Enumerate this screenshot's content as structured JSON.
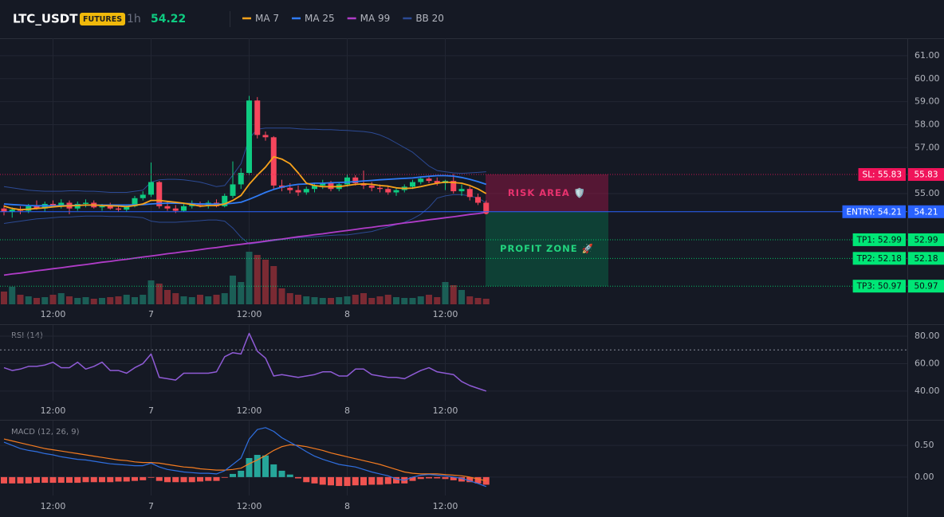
{
  "chart_data": [
    {
      "type": "candlestick",
      "title": "LTC_USDT",
      "badge": "FUTURES",
      "interval": "1h",
      "last_price": 54.22,
      "categories": [
        null,
        null,
        null,
        null,
        null,
        null,
        "12:00",
        null,
        null,
        null,
        null,
        null,
        null,
        null,
        null,
        null,
        null,
        null,
        "7",
        null,
        null,
        null,
        null,
        null,
        null,
        null,
        null,
        null,
        null,
        null,
        "12:00",
        null,
        null,
        null,
        null,
        null,
        null,
        null,
        null,
        null,
        null,
        null,
        "8",
        null,
        null,
        null,
        null,
        null,
        null,
        null,
        null,
        null,
        null,
        null,
        "12:00",
        null,
        null,
        null,
        null,
        null
      ],
      "open": [
        54.35,
        54.2,
        54.3,
        54.25,
        54.45,
        54.35,
        54.55,
        54.45,
        54.6,
        54.35,
        54.55,
        54.6,
        54.4,
        54.45,
        54.35,
        54.3,
        54.45,
        54.8,
        54.95,
        55.5,
        54.45,
        54.35,
        54.25,
        54.45,
        54.55,
        54.5,
        54.6,
        54.45,
        54.9,
        55.4,
        55.9,
        59.05,
        57.55,
        57.45,
        55.35,
        55.25,
        55.15,
        55.05,
        55.2,
        55.35,
        55.45,
        55.2,
        55.4,
        55.7,
        55.45,
        55.35,
        55.25,
        55.2,
        55.05,
        55.15,
        55.3,
        55.5,
        55.65,
        55.55,
        55.45,
        55.55,
        55.1,
        55.2,
        54.85,
        54.6
      ],
      "high": [
        54.5,
        54.4,
        54.45,
        54.55,
        54.7,
        54.65,
        54.7,
        54.75,
        54.7,
        54.65,
        54.75,
        54.7,
        54.55,
        54.6,
        54.5,
        54.5,
        54.9,
        55.1,
        56.35,
        55.55,
        54.65,
        54.5,
        54.55,
        54.7,
        54.65,
        54.7,
        54.75,
        55.0,
        56.4,
        56.1,
        59.25,
        59.2,
        57.7,
        57.5,
        55.6,
        55.45,
        55.35,
        55.3,
        55.45,
        55.6,
        55.55,
        55.5,
        55.85,
        55.8,
        56.0,
        55.5,
        55.4,
        55.35,
        55.25,
        55.4,
        55.6,
        55.75,
        55.75,
        55.7,
        55.6,
        55.85,
        55.4,
        55.3,
        55.0,
        54.7
      ],
      "low": [
        54.05,
        53.95,
        54.1,
        54.15,
        54.3,
        54.2,
        54.4,
        54.35,
        54.1,
        54.25,
        54.4,
        54.35,
        54.25,
        54.3,
        54.2,
        54.2,
        54.4,
        54.7,
        54.85,
        54.35,
        54.25,
        54.15,
        54.2,
        54.35,
        54.4,
        54.35,
        54.4,
        54.4,
        54.8,
        55.2,
        55.8,
        57.4,
        57.3,
        55.2,
        55.1,
        55.0,
        54.9,
        54.95,
        55.05,
        55.2,
        55.1,
        55.1,
        55.3,
        55.35,
        55.2,
        55.1,
        55.05,
        54.95,
        54.9,
        55.05,
        55.2,
        55.4,
        55.45,
        55.35,
        55.15,
        55.0,
        54.9,
        54.7,
        54.5,
        54.15
      ],
      "close": [
        54.2,
        54.3,
        54.25,
        54.45,
        54.35,
        54.55,
        54.45,
        54.6,
        54.35,
        54.55,
        54.6,
        54.4,
        54.45,
        54.35,
        54.3,
        54.45,
        54.8,
        54.95,
        55.5,
        54.45,
        54.35,
        54.25,
        54.45,
        54.55,
        54.5,
        54.6,
        54.45,
        54.9,
        55.4,
        55.9,
        59.05,
        57.55,
        57.45,
        55.35,
        55.25,
        55.15,
        55.05,
        55.2,
        55.35,
        55.45,
        55.2,
        55.4,
        55.7,
        55.45,
        55.35,
        55.25,
        55.2,
        55.05,
        55.15,
        55.3,
        55.5,
        55.65,
        55.55,
        55.45,
        55.55,
        55.1,
        55.2,
        54.85,
        54.6,
        54.22
      ],
      "up_color": "#0ecb81",
      "down_color": "#f6465d",
      "volume": {
        "up_color": "#1b5e56",
        "down_color": "#7a2a33",
        "values": [
          16,
          22,
          12,
          10,
          8,
          9,
          12,
          14,
          10,
          8,
          9,
          7,
          8,
          9,
          10,
          12,
          9,
          12,
          30,
          26,
          18,
          14,
          10,
          9,
          12,
          10,
          12,
          14,
          36,
          28,
          66,
          62,
          56,
          48,
          20,
          14,
          12,
          10,
          9,
          8,
          8,
          9,
          10,
          12,
          14,
          8,
          10,
          12,
          9,
          8,
          8,
          10,
          12,
          9,
          28,
          24,
          18,
          10,
          8,
          7
        ]
      },
      "series": [
        {
          "name": "MA 7",
          "color": "#f7a21b",
          "values": [
            54.45,
            54.35,
            54.3,
            54.32,
            54.35,
            54.38,
            54.42,
            54.45,
            54.47,
            54.48,
            54.5,
            54.5,
            54.48,
            54.47,
            54.46,
            54.43,
            54.48,
            54.55,
            54.7,
            54.7,
            54.66,
            54.62,
            54.58,
            54.52,
            54.45,
            54.48,
            54.48,
            54.55,
            54.7,
            54.92,
            55.4,
            55.8,
            56.15,
            56.6,
            56.5,
            56.3,
            55.9,
            55.45,
            55.35,
            55.3,
            55.3,
            55.3,
            55.35,
            55.4,
            55.42,
            55.4,
            55.35,
            55.32,
            55.25,
            55.22,
            55.24,
            55.3,
            55.38,
            55.45,
            55.5,
            55.48,
            55.45,
            55.35,
            55.2,
            55.0
          ]
        },
        {
          "name": "MA 25",
          "color": "#2f7bf5",
          "values": [
            54.55,
            54.52,
            54.5,
            54.48,
            54.47,
            54.47,
            54.47,
            54.48,
            54.48,
            54.49,
            54.5,
            54.5,
            54.5,
            54.5,
            54.5,
            54.5,
            54.51,
            54.52,
            54.55,
            54.57,
            54.58,
            54.58,
            54.57,
            54.56,
            54.55,
            54.54,
            54.54,
            54.55,
            54.58,
            54.62,
            54.75,
            54.9,
            55.05,
            55.18,
            55.28,
            55.35,
            55.4,
            55.42,
            55.45,
            55.45,
            55.47,
            55.48,
            55.5,
            55.52,
            55.55,
            55.57,
            55.6,
            55.62,
            55.64,
            55.66,
            55.68,
            55.72,
            55.75,
            55.78,
            55.78,
            55.76,
            55.7,
            55.62,
            55.52,
            55.4
          ]
        },
        {
          "name": "MA 99",
          "color": "#b03cc8",
          "values": [
            51.45,
            51.5,
            51.54,
            51.59,
            51.64,
            51.68,
            51.73,
            51.77,
            51.82,
            51.87,
            51.91,
            51.96,
            52.01,
            52.05,
            52.1,
            52.14,
            52.19,
            52.24,
            52.28,
            52.33,
            52.38,
            52.42,
            52.47,
            52.51,
            52.56,
            52.61,
            52.65,
            52.7,
            52.75,
            52.79,
            52.84,
            52.88,
            52.93,
            52.98,
            53.02,
            53.07,
            53.12,
            53.16,
            53.21,
            53.25,
            53.3,
            53.35,
            53.39,
            53.44,
            53.49,
            53.53,
            53.58,
            53.62,
            53.67,
            53.72,
            53.76,
            53.81,
            53.86,
            53.9,
            53.95,
            53.99,
            54.04,
            54.09,
            54.13,
            54.18
          ]
        },
        {
          "name": "BB 20",
          "color": "#2c4a94",
          "upper": [
            55.3,
            55.25,
            55.2,
            55.15,
            55.12,
            55.1,
            55.1,
            55.1,
            55.12,
            55.12,
            55.1,
            55.1,
            55.08,
            55.05,
            55.05,
            55.05,
            55.1,
            55.15,
            55.5,
            55.6,
            55.62,
            55.62,
            55.6,
            55.55,
            55.5,
            55.4,
            55.3,
            55.35,
            55.8,
            56.3,
            57.4,
            57.8,
            57.85,
            57.85,
            57.85,
            57.85,
            57.82,
            57.8,
            57.8,
            57.78,
            57.78,
            57.76,
            57.75,
            57.72,
            57.7,
            57.65,
            57.55,
            57.4,
            57.2,
            57.0,
            56.8,
            56.5,
            56.2,
            56.0,
            55.95,
            55.9,
            55.88,
            55.9,
            55.92,
            55.95
          ],
          "lower": [
            53.7,
            53.75,
            53.8,
            53.85,
            53.9,
            53.92,
            53.95,
            53.98,
            53.98,
            54.0,
            54.02,
            54.02,
            54.02,
            54.0,
            54.0,
            54.0,
            53.98,
            53.95,
            53.8,
            53.75,
            53.75,
            53.75,
            53.78,
            53.8,
            53.82,
            53.85,
            53.85,
            53.8,
            53.5,
            53.1,
            52.8,
            52.85,
            52.9,
            52.95,
            53.0,
            53.05,
            53.08,
            53.1,
            53.12,
            53.15,
            53.18,
            53.2,
            53.2,
            53.25,
            53.3,
            53.35,
            53.45,
            53.55,
            53.65,
            53.75,
            53.9,
            54.1,
            54.4,
            54.8,
            54.9,
            54.95,
            54.95,
            54.9,
            54.8,
            54.6
          ]
        }
      ],
      "ylim": [
        50.18,
        61.76
      ],
      "yticks": [
        {
          "value": 61,
          "label": "61.00"
        },
        {
          "value": 60,
          "label": "60.00"
        },
        {
          "value": 59,
          "label": "59.00"
        },
        {
          "value": 58,
          "label": "58.00"
        },
        {
          "value": 57,
          "label": "57.00"
        },
        {
          "value": 55,
          "label": "55.00"
        }
      ],
      "levels": [
        {
          "tag": "SL: 55.83",
          "value": 55.83,
          "color": "#f0145a",
          "text_color": "#ffffff"
        },
        {
          "tag": "ENTRY: 54.21",
          "value": 54.21,
          "color": "#2962ff",
          "text_color": "#ffffff"
        },
        {
          "tag": "TP1: 52.99",
          "value": 52.99,
          "color": "#00e676",
          "text_color": "#0b0e14"
        },
        {
          "tag": "TP2: 52.18",
          "value": 52.18,
          "color": "#00e676",
          "text_color": "#0b0e14"
        },
        {
          "tag": "TP3: 50.97",
          "value": 50.97,
          "color": "#00e676",
          "text_color": "#0b0e14"
        }
      ],
      "risk_label": "RISK AREA 🛡️",
      "profit_label": "PROFIT ZONE 🚀"
    },
    {
      "type": "line",
      "title": "RSI (14)",
      "color": "#8f5bd6",
      "categories": [
        null,
        null,
        null,
        null,
        null,
        null,
        "12:00",
        null,
        null,
        null,
        null,
        null,
        null,
        null,
        null,
        null,
        null,
        null,
        "7",
        null,
        null,
        null,
        null,
        null,
        null,
        null,
        null,
        null,
        null,
        null,
        "12:00",
        null,
        null,
        null,
        null,
        null,
        null,
        null,
        null,
        null,
        null,
        null,
        "8",
        null,
        null,
        null,
        null,
        null,
        null,
        null,
        null,
        null,
        null,
        null,
        "12:00",
        null,
        null,
        null,
        null,
        null
      ],
      "values": [
        57,
        55,
        56,
        58,
        58,
        59,
        61,
        57,
        57,
        61,
        56,
        58,
        61,
        55,
        55,
        53,
        57,
        60,
        67,
        50,
        49,
        48,
        53,
        53,
        53,
        53,
        54,
        65,
        68,
        67,
        82,
        69,
        64,
        51,
        52,
        51,
        50,
        51,
        52,
        54,
        54,
        51,
        51,
        56,
        56,
        52,
        51,
        50,
        50,
        49,
        52,
        55,
        57,
        54,
        53,
        52,
        47,
        44,
        42,
        40
      ],
      "reference": 70,
      "ylim": [
        33,
        88.1
      ],
      "yticks": [
        {
          "value": 80,
          "label": "80.00"
        },
        {
          "value": 60,
          "label": "60.00"
        },
        {
          "value": 40,
          "label": "40.00"
        }
      ]
    },
    {
      "type": "macd",
      "title": "MACD (12, 26, 9)",
      "categories": [
        null,
        null,
        null,
        null,
        null,
        null,
        "12:00",
        null,
        null,
        null,
        null,
        null,
        null,
        null,
        null,
        null,
        null,
        null,
        "7",
        null,
        null,
        null,
        null,
        null,
        null,
        null,
        null,
        null,
        null,
        null,
        "12:00",
        null,
        null,
        null,
        null,
        null,
        null,
        null,
        null,
        null,
        null,
        null,
        "8",
        null,
        null,
        null,
        null,
        null,
        null,
        null,
        null,
        null,
        null,
        null,
        "12:00",
        null,
        null,
        null,
        null,
        null
      ],
      "macd": {
        "color": "#2f6fe0",
        "values": [
          0.55,
          0.5,
          0.45,
          0.42,
          0.4,
          0.37,
          0.35,
          0.32,
          0.3,
          0.28,
          0.27,
          0.25,
          0.23,
          0.21,
          0.2,
          0.19,
          0.18,
          0.18,
          0.22,
          0.16,
          0.12,
          0.1,
          0.08,
          0.07,
          0.06,
          0.06,
          0.05,
          0.1,
          0.2,
          0.3,
          0.6,
          0.75,
          0.78,
          0.72,
          0.62,
          0.55,
          0.48,
          0.4,
          0.33,
          0.28,
          0.24,
          0.2,
          0.18,
          0.16,
          0.12,
          0.08,
          0.05,
          0.02,
          -0.03,
          -0.05,
          0.0,
          0.03,
          0.04,
          0.03,
          0.02,
          0.0,
          -0.02,
          -0.06,
          -0.1,
          -0.15
        ]
      },
      "signal": {
        "color": "#f57c20",
        "values": [
          0.6,
          0.57,
          0.54,
          0.51,
          0.48,
          0.45,
          0.43,
          0.41,
          0.39,
          0.37,
          0.35,
          0.33,
          0.31,
          0.29,
          0.27,
          0.26,
          0.24,
          0.23,
          0.23,
          0.22,
          0.2,
          0.18,
          0.16,
          0.15,
          0.13,
          0.12,
          0.11,
          0.11,
          0.12,
          0.14,
          0.21,
          0.27,
          0.34,
          0.42,
          0.48,
          0.51,
          0.5,
          0.48,
          0.45,
          0.42,
          0.38,
          0.35,
          0.32,
          0.29,
          0.26,
          0.23,
          0.2,
          0.16,
          0.12,
          0.08,
          0.06,
          0.05,
          0.05,
          0.05,
          0.04,
          0.03,
          0.02,
          0.0,
          -0.03,
          -0.06
        ]
      },
      "histogram": {
        "up_color": "#26a69a",
        "down_color": "#ef5350",
        "values": [
          -0.1,
          -0.1,
          -0.1,
          -0.1,
          -0.09,
          -0.09,
          -0.09,
          -0.09,
          -0.09,
          -0.09,
          -0.08,
          -0.08,
          -0.08,
          -0.08,
          -0.07,
          -0.07,
          -0.06,
          -0.05,
          -0.01,
          -0.06,
          -0.08,
          -0.08,
          -0.08,
          -0.08,
          -0.07,
          -0.06,
          -0.06,
          -0.01,
          0.05,
          0.1,
          0.3,
          0.35,
          0.34,
          0.2,
          0.1,
          0.04,
          -0.02,
          -0.08,
          -0.1,
          -0.12,
          -0.13,
          -0.14,
          -0.14,
          -0.13,
          -0.13,
          -0.12,
          -0.12,
          -0.11,
          -0.1,
          -0.1,
          -0.06,
          -0.03,
          -0.02,
          -0.02,
          -0.03,
          -0.05,
          -0.07,
          -0.08,
          -0.1,
          -0.12
        ]
      },
      "ylim": [
        -0.29,
        0.89
      ],
      "yticks": [
        {
          "value": 0.5,
          "label": "0.50"
        },
        {
          "value": 0,
          "label": "0.00"
        }
      ]
    }
  ]
}
